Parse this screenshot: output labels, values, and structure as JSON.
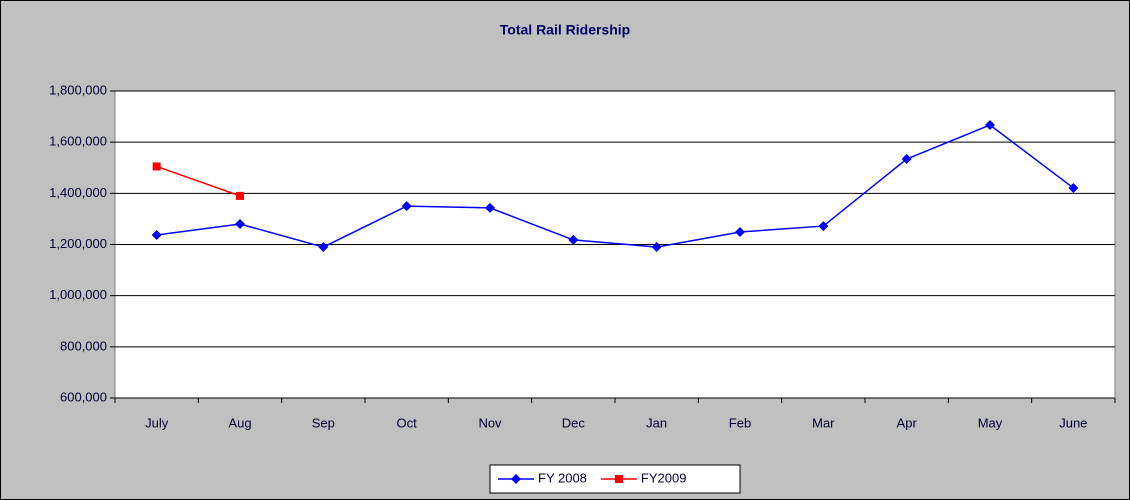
{
  "chart_data": {
    "type": "line",
    "title": "Total Rail Ridership",
    "categories": [
      "July",
      "Aug",
      "Sep",
      "Oct",
      "Nov",
      "Dec",
      "Jan",
      "Feb",
      "Mar",
      "Apr",
      "May",
      "June"
    ],
    "series": [
      {
        "name": "FY 2008",
        "color": "#0000ff",
        "marker": "diamond",
        "values": [
          1237000,
          1280000,
          1190000,
          1350000,
          1343000,
          1218000,
          1190000,
          1249000,
          1272000,
          1534000,
          1667000,
          1421000
        ]
      },
      {
        "name": "FY2009",
        "color": "#ff0000",
        "marker": "square",
        "values": [
          1505000,
          1390000,
          null,
          null,
          null,
          null,
          null,
          null,
          null,
          null,
          null,
          null
        ]
      }
    ],
    "ylim": [
      600000,
      1800000
    ],
    "yticks": [
      {
        "value": 600000,
        "label": "600,000"
      },
      {
        "value": 800000,
        "label": "800,000"
      },
      {
        "value": 1000000,
        "label": "1,000,000"
      },
      {
        "value": 1200000,
        "label": "1,200,000"
      },
      {
        "value": 1400000,
        "label": "1,400,000"
      },
      {
        "value": 1600000,
        "label": "1,600,000"
      },
      {
        "value": 1800000,
        "label": "1,800,000"
      }
    ],
    "grid": true,
    "legend": "bottom"
  }
}
